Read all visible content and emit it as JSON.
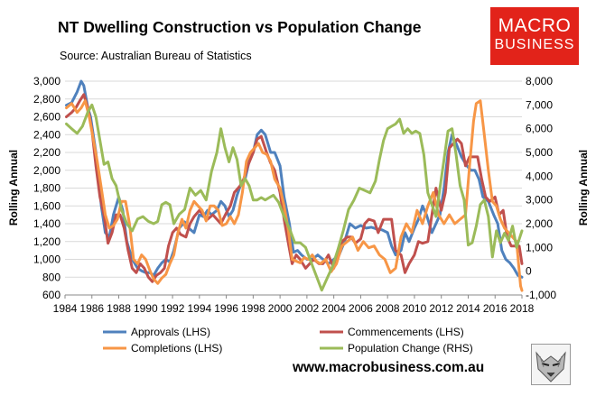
{
  "chart_data": {
    "type": "line",
    "title": "NT Dwelling Construction vs Population Change",
    "subtitle": "Source: Australian Bureau of Statistics",
    "xlabel": "",
    "ylabel_left": "Rolling Annual",
    "ylabel_right": "Rolling Annual",
    "x_ticks": [
      "1984",
      "1986",
      "1988",
      "1990",
      "1992",
      "1994",
      "1996",
      "1998",
      "2000",
      "2002",
      "2004",
      "2006",
      "2008",
      "2010",
      "2012",
      "2014",
      "2016",
      "2018"
    ],
    "xlim": [
      1984,
      2018
    ],
    "ylim_left": [
      600,
      3000
    ],
    "y_ticks_left": [
      "600",
      "800",
      "1,000",
      "1,200",
      "1,400",
      "1,600",
      "1,800",
      "2,000",
      "2,200",
      "2,400",
      "2,600",
      "2,800",
      "3,000"
    ],
    "ylim_right": [
      -1000,
      8000
    ],
    "y_ticks_right": [
      "-1,000",
      "0",
      "1,000",
      "2,000",
      "3,000",
      "4,000",
      "5,000",
      "6,000",
      "7,000",
      "8,000"
    ],
    "grid": "horizontal",
    "legend_position": "bottom",
    "series": [
      {
        "name": "Approvals (LHS)",
        "axis": "left",
        "color": "#4f81bd",
        "x": [
          1984.1,
          1984.5,
          1984.9,
          1985.2,
          1985.4,
          1985.7,
          1985.9,
          1986.3,
          1986.7,
          1987.0,
          1987.3,
          1987.6,
          1988.0,
          1988.3,
          1988.6,
          1989.0,
          1989.4,
          1989.7,
          1990.0,
          1990.3,
          1990.6,
          1990.9,
          1991.2,
          1991.5,
          1991.8,
          1992.1,
          1992.5,
          1992.9,
          1993.2,
          1993.6,
          1994.0,
          1994.3,
          1994.6,
          1994.9,
          1995.3,
          1995.6,
          1995.9,
          1996.2,
          1996.5,
          1996.8,
          1997.1,
          1997.4,
          1997.7,
          1998.0,
          1998.3,
          1998.6,
          1998.9,
          1999.3,
          1999.6,
          2000.0,
          2000.3,
          2000.7,
          2001.0,
          2001.3,
          2001.6,
          2002.0,
          2002.4,
          2002.8,
          2003.2,
          2003.6,
          2004.0,
          2004.4,
          2004.8,
          2005.2,
          2005.6,
          2006.0,
          2006.4,
          2006.8,
          2007.2,
          2007.6,
          2008.0,
          2008.3,
          2008.6,
          2009.0,
          2009.3,
          2009.6,
          2010.0,
          2010.3,
          2010.6,
          2010.9,
          2011.3,
          2011.6,
          2011.9,
          2012.2,
          2012.5,
          2012.8,
          2013.1,
          2013.5,
          2013.9,
          2014.2,
          2014.5,
          2014.8,
          2015.1,
          2015.5,
          2015.9,
          2016.2,
          2016.5,
          2016.8,
          2017.1,
          2017.4,
          2017.7,
          2018.0
        ],
        "values": [
          2730,
          2760,
          2880,
          3000,
          2950,
          2700,
          2600,
          2200,
          1600,
          1300,
          1250,
          1500,
          1700,
          1550,
          1200,
          1000,
          900,
          870,
          850,
          850,
          820,
          900,
          960,
          1000,
          970,
          1100,
          1350,
          1420,
          1350,
          1300,
          1500,
          1480,
          1550,
          1500,
          1550,
          1650,
          1600,
          1480,
          1550,
          1720,
          1850,
          1900,
          2100,
          2200,
          2400,
          2450,
          2400,
          2200,
          2200,
          2050,
          1700,
          1400,
          1080,
          1100,
          1050,
          1000,
          1000,
          1050,
          1000,
          950,
          1000,
          1050,
          1200,
          1400,
          1350,
          1380,
          1350,
          1360,
          1340,
          1330,
          1300,
          1150,
          1050,
          1100,
          1300,
          1200,
          1350,
          1450,
          1600,
          1500,
          1300,
          1400,
          1500,
          1800,
          2200,
          2400,
          2300,
          2150,
          2050,
          2000,
          2000,
          1900,
          1700,
          1650,
          1500,
          1400,
          1100,
          1000,
          960,
          900,
          820,
          800
        ]
      },
      {
        "name": "Commencements (LHS)",
        "axis": "left",
        "color": "#c0504d",
        "x": [
          1984.1,
          1984.5,
          1984.8,
          1985.1,
          1985.4,
          1985.7,
          1986.0,
          1986.3,
          1986.6,
          1986.9,
          1987.2,
          1987.5,
          1987.8,
          1988.1,
          1988.4,
          1988.7,
          1989.0,
          1989.3,
          1989.6,
          1989.9,
          1990.2,
          1990.5,
          1990.8,
          1991.1,
          1991.4,
          1991.7,
          1992.0,
          1992.3,
          1992.6,
          1993.0,
          1993.3,
          1993.6,
          1994.0,
          1994.3,
          1994.6,
          1995.0,
          1995.3,
          1995.6,
          1996.0,
          1996.3,
          1996.6,
          1997.0,
          1997.3,
          1997.6,
          1998.0,
          1998.3,
          1998.6,
          1999.0,
          1999.3,
          1999.6,
          2000.0,
          2000.3,
          2000.6,
          2000.9,
          2001.2,
          2001.5,
          2001.9,
          2002.2,
          2002.5,
          2002.9,
          2003.2,
          2003.6,
          2004.0,
          2004.3,
          2004.6,
          2005.0,
          2005.3,
          2005.6,
          2006.0,
          2006.3,
          2006.6,
          2007.0,
          2007.3,
          2007.7,
          2008.0,
          2008.3,
          2008.6,
          2009.0,
          2009.3,
          2009.6,
          2010.0,
          2010.3,
          2010.6,
          2011.0,
          2011.3,
          2011.6,
          2012.0,
          2012.3,
          2012.6,
          2012.9,
          2013.2,
          2013.5,
          2013.8,
          2014.1,
          2014.4,
          2014.7,
          2015.0,
          2015.3,
          2015.6,
          2016.0,
          2016.3,
          2016.6,
          2016.9,
          2017.2,
          2017.5,
          2017.8,
          2018.0
        ],
        "values": [
          2600,
          2650,
          2700,
          2780,
          2850,
          2700,
          2450,
          2050,
          1700,
          1500,
          1180,
          1300,
          1500,
          1500,
          1350,
          1100,
          900,
          850,
          950,
          900,
          800,
          750,
          820,
          850,
          900,
          1150,
          1300,
          1350,
          1280,
          1250,
          1400,
          1480,
          1550,
          1500,
          1450,
          1500,
          1450,
          1400,
          1520,
          1600,
          1750,
          1820,
          1900,
          2050,
          2200,
          2350,
          2380,
          2200,
          2080,
          2000,
          1750,
          1450,
          1200,
          950,
          1050,
          1000,
          900,
          950,
          1000,
          950,
          950,
          1050,
          900,
          1050,
          1200,
          1250,
          1250,
          1180,
          1230,
          1400,
          1450,
          1430,
          1300,
          1450,
          1450,
          1450,
          1100,
          1050,
          850,
          950,
          1050,
          1200,
          1180,
          1200,
          1500,
          1800,
          1550,
          1750,
          2250,
          2300,
          2350,
          2300,
          2050,
          2150,
          2150,
          2150,
          1900,
          1700,
          1650,
          1700,
          1500,
          1550,
          1250,
          1150,
          1150,
          1150,
          950
        ]
      },
      {
        "name": "Completions (LHS)",
        "axis": "left",
        "color": "#f79646",
        "x": [
          1984.1,
          1984.5,
          1984.9,
          1985.2,
          1985.5,
          1985.8,
          1986.1,
          1986.4,
          1986.7,
          1987.0,
          1987.3,
          1987.6,
          1987.9,
          1988.2,
          1988.5,
          1988.8,
          1989.1,
          1989.4,
          1989.7,
          1990.0,
          1990.3,
          1990.6,
          1990.9,
          1991.2,
          1991.5,
          1991.8,
          1992.1,
          1992.4,
          1992.7,
          1993.0,
          1993.3,
          1993.6,
          1993.9,
          1994.2,
          1994.5,
          1994.8,
          1995.1,
          1995.4,
          1995.7,
          1996.0,
          1996.3,
          1996.6,
          1996.9,
          1997.2,
          1997.5,
          1997.8,
          1998.1,
          1998.4,
          1998.7,
          1999.0,
          1999.3,
          1999.6,
          2000.0,
          2000.3,
          2000.6,
          2000.9,
          2001.2,
          2001.5,
          2001.8,
          2002.1,
          2002.4,
          2002.7,
          2003.0,
          2003.4,
          2003.8,
          2004.2,
          2004.6,
          2005.0,
          2005.4,
          2005.8,
          2006.2,
          2006.6,
          2007.0,
          2007.4,
          2007.8,
          2008.2,
          2008.6,
          2009.0,
          2009.4,
          2009.8,
          2010.2,
          2010.6,
          2011.0,
          2011.4,
          2011.8,
          2012.2,
          2012.6,
          2013.0,
          2013.4,
          2013.8,
          2014.1,
          2014.4,
          2014.6,
          2014.9,
          2015.2,
          2015.5,
          2015.8,
          2016.1,
          2016.4,
          2016.7,
          2017.0,
          2017.3,
          2017.6,
          2017.9,
          2018.0
        ],
        "values": [
          2700,
          2750,
          2650,
          2700,
          2780,
          2600,
          2350,
          2100,
          1800,
          1500,
          1350,
          1380,
          1450,
          1650,
          1650,
          1400,
          1000,
          950,
          1050,
          1000,
          880,
          780,
          730,
          790,
          830,
          950,
          1050,
          1300,
          1450,
          1350,
          1550,
          1650,
          1600,
          1550,
          1430,
          1600,
          1600,
          1550,
          1380,
          1400,
          1480,
          1400,
          1500,
          1750,
          2100,
          2200,
          2250,
          2300,
          2200,
          2180,
          2100,
          1900,
          1800,
          1600,
          1350,
          1000,
          980,
          960,
          1020,
          1000,
          1050,
          980,
          950,
          1000,
          860,
          950,
          1150,
          1200,
          1250,
          1100,
          1200,
          1130,
          1150,
          1050,
          1000,
          850,
          900,
          1250,
          1400,
          1300,
          1550,
          1400,
          1600,
          1750,
          1500,
          1400,
          1500,
          1400,
          1450,
          1500,
          2050,
          2550,
          2750,
          2780,
          2400,
          2000,
          1650,
          1600,
          1450,
          1350,
          1300,
          1250,
          1200,
          700,
          650
        ]
      },
      {
        "name": "Population Change (RHS)",
        "axis": "right",
        "color": "#9bbb59",
        "x": [
          1984.1,
          1984.5,
          1984.9,
          1985.3,
          1985.7,
          1986.0,
          1986.3,
          1986.6,
          1986.9,
          1987.2,
          1987.5,
          1987.8,
          1988.2,
          1988.6,
          1989.0,
          1989.4,
          1989.8,
          1990.2,
          1990.6,
          1990.9,
          1991.2,
          1991.5,
          1991.8,
          1992.1,
          1992.5,
          1992.9,
          1993.3,
          1993.7,
          1994.1,
          1994.5,
          1994.9,
          1995.3,
          1995.6,
          1995.9,
          1996.2,
          1996.5,
          1996.8,
          1997.1,
          1997.4,
          1997.7,
          1998.0,
          1998.3,
          1998.6,
          1998.9,
          1999.2,
          1999.5,
          1999.9,
          2000.3,
          2000.7,
          2001.1,
          2001.5,
          2001.9,
          2002.3,
          2002.7,
          2003.1,
          2003.5,
          2003.9,
          2004.3,
          2004.7,
          2005.1,
          2005.5,
          2005.9,
          2006.3,
          2006.7,
          2007.1,
          2007.4,
          2007.7,
          2008.0,
          2008.3,
          2008.6,
          2008.9,
          2009.2,
          2009.5,
          2009.8,
          2010.1,
          2010.4,
          2010.7,
          2011.0,
          2011.3,
          2011.6,
          2011.9,
          2012.2,
          2012.5,
          2012.8,
          2013.1,
          2013.4,
          2013.7,
          2014.0,
          2014.3,
          2014.6,
          2014.9,
          2015.2,
          2015.5,
          2015.8,
          2016.1,
          2016.4,
          2016.7,
          2017.0,
          2017.3,
          2017.6,
          2018.0
        ],
        "values": [
          6200,
          6000,
          5800,
          6100,
          6700,
          7000,
          6500,
          5500,
          4500,
          4600,
          3900,
          3600,
          2600,
          2000,
          1700,
          2200,
          2300,
          2100,
          2000,
          2100,
          2800,
          2900,
          2800,
          2000,
          2400,
          2600,
          3500,
          3200,
          3400,
          3000,
          4200,
          5000,
          6000,
          5200,
          4600,
          5200,
          4700,
          3600,
          3900,
          3600,
          3000,
          3000,
          3100,
          3000,
          3100,
          3200,
          2900,
          2300,
          1800,
          1200,
          1200,
          1000,
          400,
          -200,
          -800,
          -300,
          200,
          900,
          1700,
          2600,
          3000,
          3500,
          3400,
          3300,
          3800,
          4700,
          5500,
          6000,
          6100,
          6200,
          6400,
          5800,
          6000,
          5800,
          5900,
          5800,
          4900,
          3300,
          2800,
          2300,
          3500,
          4700,
          5900,
          6000,
          4900,
          3600,
          3000,
          1100,
          1200,
          1900,
          2800,
          3000,
          2300,
          600,
          1700,
          1200,
          1600,
          1300,
          1900,
          1000,
          1700
        ]
      }
    ]
  },
  "branding": {
    "logo_line1": "MACRO",
    "logo_line2": "BUSINESS",
    "website": "www.macrobusiness.com.au",
    "logo_color": "#e2231a"
  }
}
